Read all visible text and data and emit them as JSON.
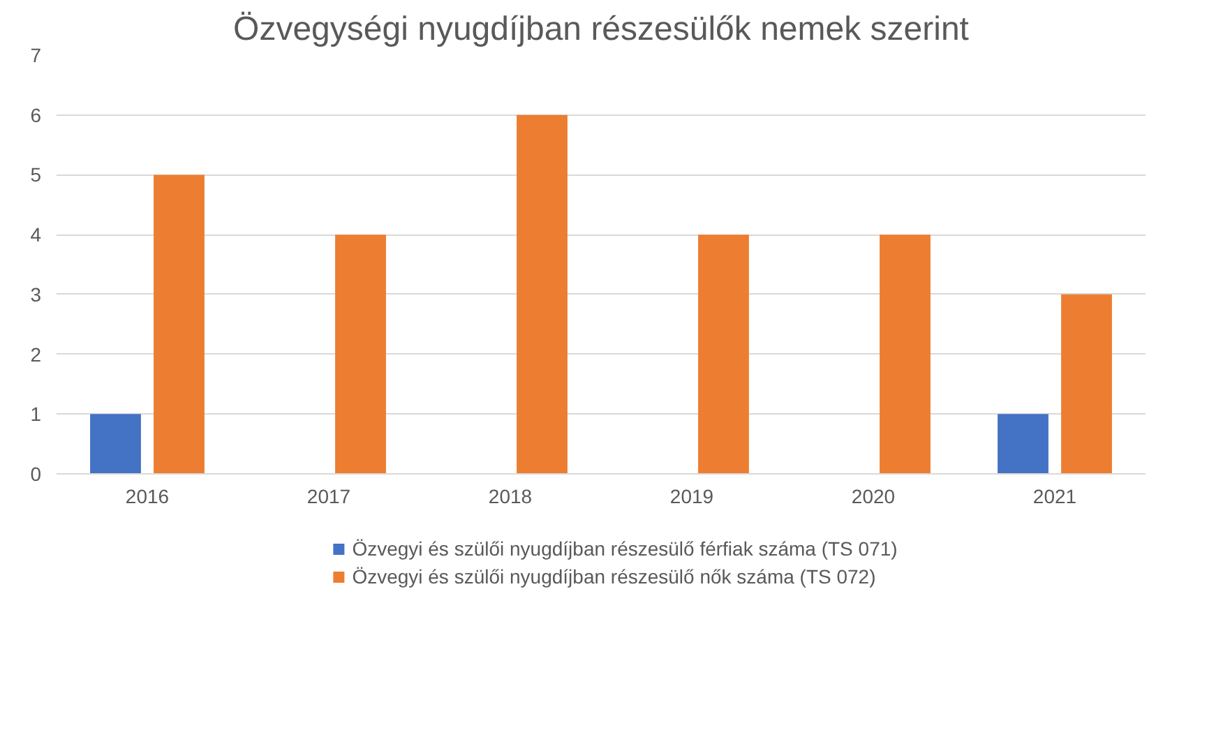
{
  "chart_data": {
    "type": "bar",
    "title": "Özvegységi nyugdíjban részesülők nemek szerint",
    "categories": [
      "2016",
      "2017",
      "2018",
      "2019",
      "2020",
      "2021"
    ],
    "series": [
      {
        "name": "Özvegyi és szülői nyugdíjban részesülő férfiak száma (TS 071)",
        "color": "#4472c4",
        "values": [
          1,
          0,
          0,
          0,
          0,
          1
        ]
      },
      {
        "name": "Özvegyi és szülői nyugdíjban részesülő nők száma (TS 072)",
        "color": "#ed7d31",
        "values": [
          5,
          4,
          6,
          4,
          4,
          3
        ]
      }
    ],
    "ylim": [
      0,
      7
    ],
    "yticks": [
      0,
      1,
      2,
      3,
      4,
      5,
      6,
      7
    ],
    "grid": "y",
    "legend": "bottom"
  }
}
